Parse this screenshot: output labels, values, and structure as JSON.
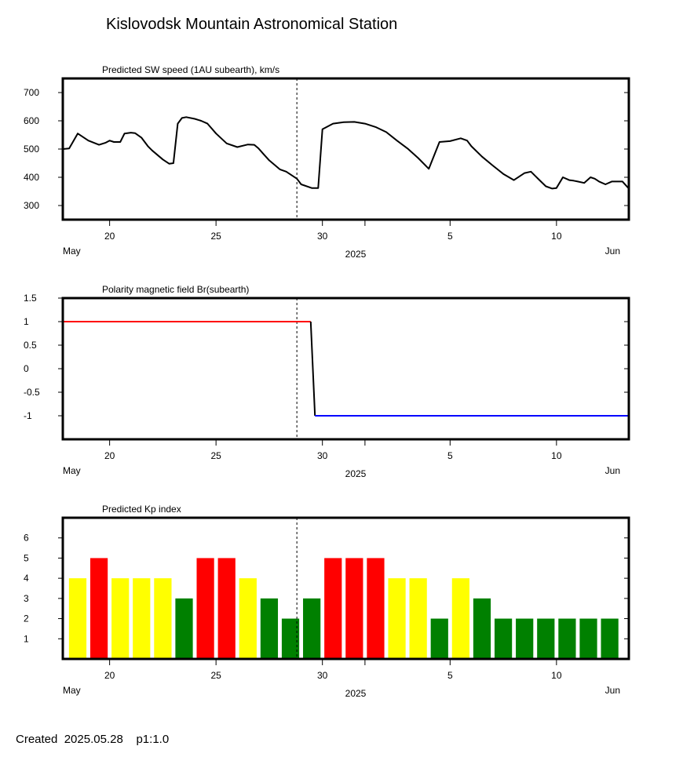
{
  "title": "Kislovodsk Mountain Astronomical Station",
  "footer": {
    "created_label": "Created",
    "created_date": "2025.05.28",
    "page": "p1:1.0"
  },
  "axis": {
    "ticks": [
      {
        "day": 20,
        "label": "20"
      },
      {
        "day": 25,
        "label": "25"
      },
      {
        "day": 30,
        "label": "30"
      },
      {
        "day": 36,
        "label": "5"
      },
      {
        "day": 41,
        "label": "10"
      }
    ],
    "minor_ticks": [
      32
    ],
    "left_label": "May",
    "center_label": "2025",
    "right_label": "Jun",
    "now_day": 28.8,
    "day_range": [
      17.8,
      44.4
    ]
  },
  "chart_data": [
    {
      "type": "line",
      "title": "Predicted SW speed (1AU subearth), km/s",
      "x_unit": "day (May 2025)",
      "ylim": [
        250,
        750
      ],
      "y_ticks": [
        300,
        400,
        500,
        600,
        700
      ],
      "series": [
        {
          "color": "#000000",
          "x": [
            17.8,
            18.1,
            18.5,
            19.0,
            19.5,
            19.8,
            20.0,
            20.2,
            20.5,
            20.7,
            21.0,
            21.2,
            21.5,
            21.8,
            22.0,
            22.5,
            22.8,
            23.0,
            23.2,
            23.4,
            23.6,
            24.0,
            24.3,
            24.6,
            25.0,
            25.5,
            26.0,
            26.5,
            26.8,
            27.0,
            27.2,
            27.5,
            28.0,
            28.3,
            28.8,
            29.0,
            29.5,
            29.8,
            30.0,
            30.5,
            31.0,
            31.5,
            32.0,
            32.5,
            33.0,
            33.5,
            34.0,
            34.5,
            35.0,
            35.5,
            36.0,
            36.5,
            36.8,
            37.0,
            37.5,
            38.0,
            38.5,
            39.0,
            39.5,
            39.8,
            40.0,
            40.2,
            40.5,
            40.8,
            41.0,
            41.3,
            41.6,
            41.8,
            42.0,
            42.3,
            42.6,
            42.8,
            43.0,
            43.3,
            43.6,
            43.9,
            44.1,
            44.4
          ],
          "y": [
            500,
            502,
            555,
            530,
            515,
            522,
            530,
            525,
            525,
            555,
            558,
            556,
            540,
            510,
            495,
            463,
            448,
            450,
            590,
            610,
            613,
            607,
            600,
            590,
            555,
            520,
            507,
            516,
            515,
            502,
            485,
            460,
            428,
            420,
            395,
            375,
            362,
            362,
            570,
            590,
            595,
            596,
            590,
            578,
            560,
            530,
            502,
            468,
            430,
            525,
            528,
            538,
            530,
            510,
            473,
            442,
            412,
            390,
            415,
            420,
            405,
            390,
            368,
            360,
            362,
            400,
            390,
            388,
            385,
            380,
            400,
            395,
            385,
            375,
            385,
            385,
            385,
            360
          ]
        }
      ]
    },
    {
      "type": "line",
      "title": "Polarity magnetic field  Br(subearth)",
      "x_unit": "day (May 2025)",
      "ylim": [
        -1.5,
        1.5
      ],
      "y_ticks": [
        1.5,
        1,
        0.5,
        0,
        -0.5,
        -1
      ],
      "y_tick_labels": [
        "1.5",
        "1",
        "0.5",
        "0",
        "-0.5",
        "-1"
      ],
      "series": [
        {
          "color": "#ff0000",
          "x": [
            17.8,
            29.45
          ],
          "y": [
            1,
            1
          ]
        },
        {
          "color": "#000000",
          "x": [
            29.45,
            29.65
          ],
          "y": [
            1,
            -1
          ]
        },
        {
          "color": "#0000ff",
          "x": [
            29.65,
            44.4
          ],
          "y": [
            -1,
            -1
          ]
        }
      ]
    },
    {
      "type": "bar",
      "title": "Predicted Kp index",
      "x_unit": "day (May 2025)",
      "ylim": [
        0,
        7
      ],
      "y_ticks": [
        1,
        2,
        3,
        4,
        5,
        6
      ],
      "bar_width_days": 0.82,
      "days": [
        18.5,
        19.5,
        20.5,
        21.5,
        22.5,
        23.5,
        24.5,
        25.5,
        26.5,
        27.5,
        28.5,
        29.5,
        30.5,
        31.5,
        32.5,
        33.5,
        34.5,
        35.5,
        36.5,
        37.5,
        38.5,
        39.5,
        40.5,
        41.5,
        42.5,
        43.5
      ],
      "values": [
        4,
        5,
        4,
        4,
        4,
        3,
        5,
        5,
        4,
        3,
        2,
        3,
        5,
        5,
        5,
        4,
        4,
        2,
        4,
        3,
        2,
        2,
        2,
        2,
        2,
        2
      ],
      "colors": [
        "#ffff00",
        "#ff0000",
        "#ffff00",
        "#ffff00",
        "#ffff00",
        "#008000",
        "#ff0000",
        "#ff0000",
        "#ffff00",
        "#008000",
        "#008000",
        "#008000",
        "#ff0000",
        "#ff0000",
        "#ff0000",
        "#ffff00",
        "#ffff00",
        "#008000",
        "#ffff00",
        "#008000",
        "#008000",
        "#008000",
        "#008000",
        "#008000",
        "#008000",
        "#008000"
      ]
    }
  ]
}
